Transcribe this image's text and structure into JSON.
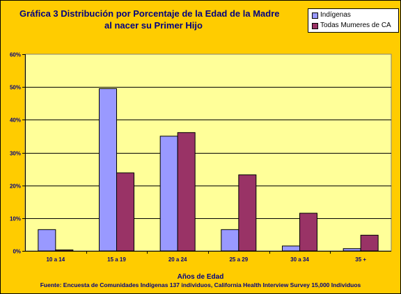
{
  "chart_data": {
    "type": "bar",
    "title_line1": "Gráfica 3   Distribución por Porcentaje de la Edad de la Madre",
    "title_line2": "al nacer su Primer Hijo",
    "xlabel": "Años de Edad",
    "ylabel": "",
    "source": "Fuente: Encuesta de Comunidades Indígenas 137 individuos, California Health Interview Survey 15,000 Individuos",
    "categories": [
      "10 a 14",
      "15 a 19",
      "20 a 24",
      "25 a 29",
      "30 a 34",
      "35 +"
    ],
    "series": [
      {
        "name": "Indígenas",
        "color": "#9999ff",
        "values": [
          6.5,
          49.5,
          35,
          6.5,
          1.5,
          0.7
        ]
      },
      {
        "name": "Todas Mumeres de CA",
        "color": "#993366",
        "values": [
          0.3,
          23.8,
          36.1,
          23.2,
          11.5,
          4.8
        ]
      }
    ],
    "ylim": [
      0,
      60
    ],
    "yticks": [
      0,
      10,
      20,
      30,
      40,
      50,
      60
    ],
    "ytick_labels": [
      "0%",
      "10%",
      "20%",
      "30%",
      "40%",
      "50%",
      "60%"
    ],
    "grid": true,
    "legend_position": "top-right",
    "plot_background": "#ffff99",
    "frame_background": "#ffcc00"
  }
}
